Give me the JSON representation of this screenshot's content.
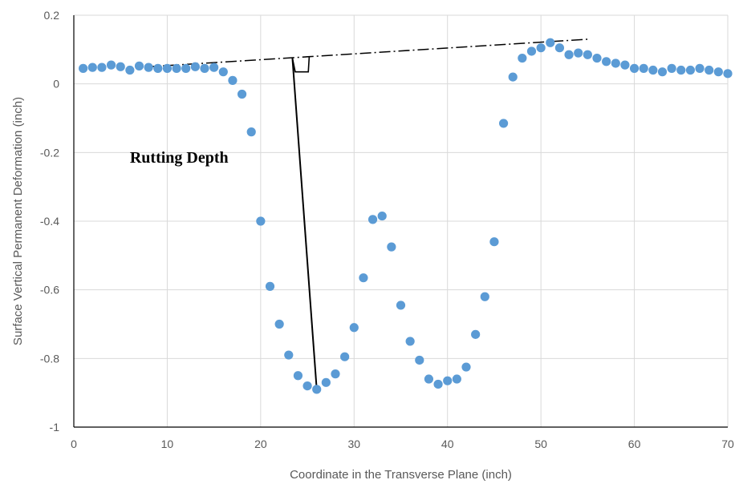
{
  "chart_data": {
    "type": "scatter",
    "title": "",
    "xlabel": "Coordinate in the Transverse  Plane (inch)",
    "ylabel": "Surface Vertical Permanent Deformation (inch)",
    "xlim": [
      0,
      70
    ],
    "ylim": [
      -1,
      0.2
    ],
    "xticks": [
      0,
      10,
      20,
      30,
      40,
      50,
      60,
      70
    ],
    "yticks": [
      -1,
      -0.8,
      -0.6,
      -0.4,
      -0.2,
      0,
      0.2
    ],
    "xtick_labels": [
      "0",
      "10",
      "20",
      "30",
      "40",
      "50",
      "60",
      "70"
    ],
    "ytick_labels": [
      "-1",
      "-0.8",
      "-0.6",
      "-0.4",
      "-0.2",
      "0",
      "0.2"
    ],
    "grid": true,
    "legend": "none",
    "marker_color": "#5b9bd5",
    "series": [
      {
        "x": [
          1,
          2,
          3,
          4,
          5,
          6,
          7,
          8,
          9,
          10,
          11,
          12,
          13,
          14,
          15,
          16,
          17,
          18,
          19,
          20,
          21,
          22,
          23,
          24,
          25,
          26,
          27,
          28,
          29,
          30,
          31,
          32,
          33,
          34,
          35,
          36,
          37,
          38,
          39,
          40,
          41,
          42,
          43,
          44,
          45,
          46,
          47,
          48,
          49,
          50,
          51,
          52,
          53,
          54,
          55,
          56,
          57,
          58,
          59,
          60,
          61,
          62,
          63,
          64,
          65,
          66,
          67,
          68,
          69,
          70
        ],
        "y": [
          0.045,
          0.048,
          0.048,
          0.055,
          0.05,
          0.04,
          0.052,
          0.048,
          0.045,
          0.045,
          0.045,
          0.045,
          0.05,
          0.045,
          0.048,
          0.035,
          0.01,
          -0.03,
          -0.14,
          -0.4,
          -0.59,
          -0.7,
          -0.79,
          -0.85,
          -0.88,
          -0.89,
          -0.87,
          -0.845,
          -0.795,
          -0.71,
          -0.565,
          -0.395,
          -0.385,
          -0.475,
          -0.645,
          -0.75,
          -0.805,
          -0.86,
          -0.875,
          -0.865,
          -0.86,
          -0.825,
          -0.73,
          -0.62,
          -0.46,
          -0.115,
          0.02,
          0.075,
          0.095,
          0.105,
          0.12,
          0.105,
          0.085,
          0.09,
          0.085,
          0.075,
          0.065,
          0.06,
          0.055,
          0.045,
          0.045,
          0.04,
          0.035,
          0.045,
          0.04,
          0.04,
          0.045,
          0.04,
          0.035,
          0.03
        ]
      }
    ],
    "annotations": {
      "label": "Rutting Depth",
      "label_position": [
        6,
        -0.23
      ],
      "reference_line": {
        "from": [
          8,
          0.05
        ],
        "to": [
          55,
          0.13
        ],
        "style": "dash-dot"
      },
      "depth_line": {
        "from": [
          23.4,
          0.075
        ],
        "to": [
          26,
          -0.89
        ]
      },
      "step_marker": [
        [
          23.4,
          0.075
        ],
        [
          23.7,
          0.035
        ],
        [
          25.1,
          0.035
        ],
        [
          25.2,
          0.08
        ]
      ]
    }
  }
}
